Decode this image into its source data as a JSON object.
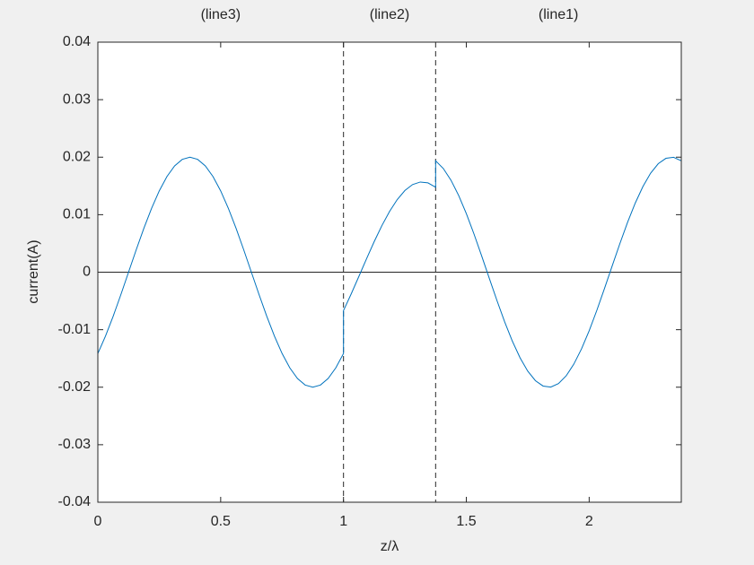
{
  "chart_data": {
    "type": "line",
    "xlabel": "z/λ",
    "ylabel": "current(A)",
    "xlim": [
      0,
      2.375
    ],
    "ylim": [
      -0.04,
      0.04
    ],
    "xticks": [
      0,
      0.5,
      1,
      1.5,
      2
    ],
    "yticks": [
      -0.04,
      -0.03,
      -0.02,
      -0.01,
      0,
      0.01,
      0.02,
      0.03,
      0.04
    ],
    "color": "#0072bd",
    "box": true,
    "zero_line": 0,
    "dashed_lines": [
      1,
      1.375
    ],
    "annotations": [
      {
        "text": "(line3)",
        "x": 0.5
      },
      {
        "text": "(line2)",
        "x": 1.1875
      },
      {
        "text": "(line1)",
        "x": 1.875
      }
    ],
    "x": [
      0,
      0.03125,
      0.0625,
      0.09375,
      0.125,
      0.15625,
      0.1875,
      0.21875,
      0.25,
      0.28125,
      0.3125,
      0.34375,
      0.375,
      0.40625,
      0.4375,
      0.46875,
      0.5,
      0.53125,
      0.5625,
      0.59375,
      0.625,
      0.65625,
      0.6875,
      0.71875,
      0.75,
      0.78125,
      0.8125,
      0.84375,
      0.875,
      0.90625,
      0.9375,
      0.96875,
      1,
      1,
      1.03125,
      1.0625,
      1.09375,
      1.125,
      1.15625,
      1.1875,
      1.21875,
      1.25,
      1.28125,
      1.3125,
      1.34375,
      1.375,
      1.375,
      1.40625,
      1.4375,
      1.46875,
      1.5,
      1.53125,
      1.5625,
      1.59375,
      1.625,
      1.65625,
      1.6875,
      1.71875,
      1.75,
      1.78125,
      1.8125,
      1.84375,
      1.875,
      1.90625,
      1.9375,
      1.96875,
      2,
      2.03125,
      2.0625,
      2.09375,
      2.125,
      2.15625,
      2.1875,
      2.21875,
      2.25,
      2.28125,
      2.3125,
      2.34375,
      2.375
    ],
    "values": [
      -0.01414,
      -0.01111,
      -0.00765,
      -0.0039,
      0,
      0.0039,
      0.00765,
      0.01111,
      0.01414,
      0.01663,
      0.01848,
      0.01962,
      0.02,
      0.01962,
      0.01848,
      0.01663,
      0.01414,
      0.01111,
      0.00765,
      0.0039,
      0,
      -0.0039,
      -0.00765,
      -0.01111,
      -0.01414,
      -0.01663,
      -0.01848,
      -0.01962,
      -0.02,
      -0.01962,
      -0.01848,
      -0.01663,
      -0.01414,
      -0.00668,
      -0.00378,
      -0.00074,
      0.00233,
      0.00532,
      0.0081,
      0.01057,
      0.01263,
      0.01421,
      0.01524,
      0.01568,
      0.01553,
      0.01477,
      0.01937,
      0.01803,
      0.01599,
      0.01334,
      0.01018,
      0.00663,
      0.00282,
      -0.0011,
      -0.00497,
      -0.00866,
      -0.01201,
      -0.01489,
      -0.01721,
      -0.01887,
      -0.0198,
      -0.01997,
      -0.01937,
      -0.01803,
      -0.01599,
      -0.01334,
      -0.01018,
      -0.00663,
      -0.00282,
      0.0011,
      0.00497,
      0.00866,
      0.01201,
      0.01489,
      0.01721,
      0.01887,
      0.0198,
      0.01997,
      0.01937
    ]
  }
}
